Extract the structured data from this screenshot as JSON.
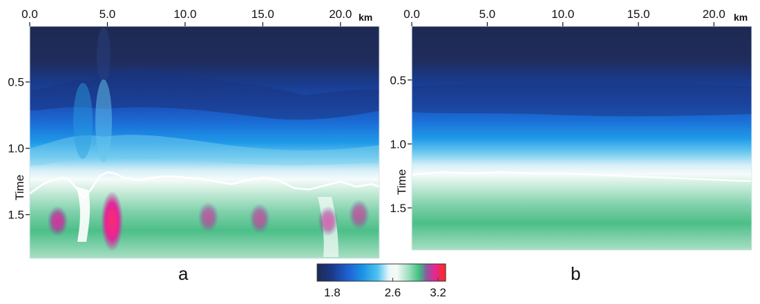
{
  "chart_data": [
    {
      "type": "heatmap",
      "panel_label": "a",
      "x_unit": "km",
      "ylabel": "Time",
      "xlim": [
        0,
        22.5
      ],
      "ylim": [
        1.83,
        0.08
      ],
      "x_ticks": [
        "0.0",
        "5.0",
        "10.0",
        "15.0",
        "20.0"
      ],
      "x_tick_values": [
        0,
        5,
        10,
        15,
        20
      ],
      "y_ticks": [
        "0.5",
        "1.0",
        "1.5"
      ],
      "y_tick_values": [
        0.5,
        1.0,
        1.5
      ],
      "white_contour": {
        "x": [
          0,
          1,
          2,
          2.5,
          3,
          3.5,
          4,
          4.5,
          5,
          5.5,
          6,
          7,
          8,
          9,
          10,
          11,
          12,
          13,
          14,
          15,
          16,
          17,
          18,
          19,
          20,
          21,
          22,
          22.5
        ],
        "time": [
          1.34,
          1.26,
          1.22,
          1.23,
          1.3,
          1.38,
          1.3,
          1.21,
          1.18,
          1.19,
          1.22,
          1.24,
          1.22,
          1.21,
          1.22,
          1.23,
          1.25,
          1.27,
          1.24,
          1.22,
          1.24,
          1.3,
          1.31,
          1.28,
          1.25,
          1.29,
          1.27,
          1.29
        ]
      },
      "anomalies": [
        {
          "x": 1.8,
          "time": 1.55,
          "value": 3.0
        },
        {
          "x": 5.3,
          "time": 1.55,
          "value": 3.2
        },
        {
          "x": 11.5,
          "time": 1.52,
          "value": 2.9
        },
        {
          "x": 14.8,
          "time": 1.53,
          "value": 2.9
        },
        {
          "x": 19.2,
          "time": 1.55,
          "value": 2.9
        },
        {
          "x": 21.2,
          "time": 1.5,
          "value": 2.85
        }
      ]
    },
    {
      "type": "heatmap",
      "panel_label": "b",
      "x_unit": "km",
      "ylabel": "Time",
      "xlim": [
        0,
        22.5
      ],
      "ylim": [
        1.83,
        0.08
      ],
      "x_ticks": [
        "0.0",
        "5.0",
        "10.0",
        "15.0",
        "20.0"
      ],
      "x_tick_values": [
        0,
        5,
        10,
        15,
        20
      ],
      "y_ticks": [
        "0.5",
        "1.0",
        "1.5"
      ],
      "y_tick_values": [
        0.5,
        1.0,
        1.5
      ],
      "white_contour": {
        "x": [
          0,
          2,
          4,
          6,
          8,
          10,
          12,
          14,
          16,
          18,
          20,
          22,
          22.5
        ],
        "time": [
          1.24,
          1.22,
          1.23,
          1.22,
          1.23,
          1.23,
          1.24,
          1.25,
          1.26,
          1.27,
          1.28,
          1.29,
          1.29
        ]
      }
    }
  ],
  "colorbar": {
    "range": [
      1.6,
      3.3
    ],
    "tick_labels": [
      "1.8",
      "2.6",
      "3.2"
    ],
    "tick_values": [
      1.8,
      2.6,
      3.2
    ],
    "stops": [
      {
        "v": 1.6,
        "color": "#1e2a52"
      },
      {
        "v": 1.8,
        "color": "#1b3a8c"
      },
      {
        "v": 2.0,
        "color": "#1f5fd0"
      },
      {
        "v": 2.2,
        "color": "#1c92e6"
      },
      {
        "v": 2.4,
        "color": "#4fc3f0"
      },
      {
        "v": 2.55,
        "color": "#e8f6fb"
      },
      {
        "v": 2.65,
        "color": "#f4fbf6"
      },
      {
        "v": 2.8,
        "color": "#a6e0c2"
      },
      {
        "v": 2.95,
        "color": "#3fbf84"
      },
      {
        "v": 3.05,
        "color": "#8a5a9e"
      },
      {
        "v": 3.15,
        "color": "#e0289a"
      },
      {
        "v": 3.3,
        "color": "#ff2a1a"
      }
    ]
  }
}
